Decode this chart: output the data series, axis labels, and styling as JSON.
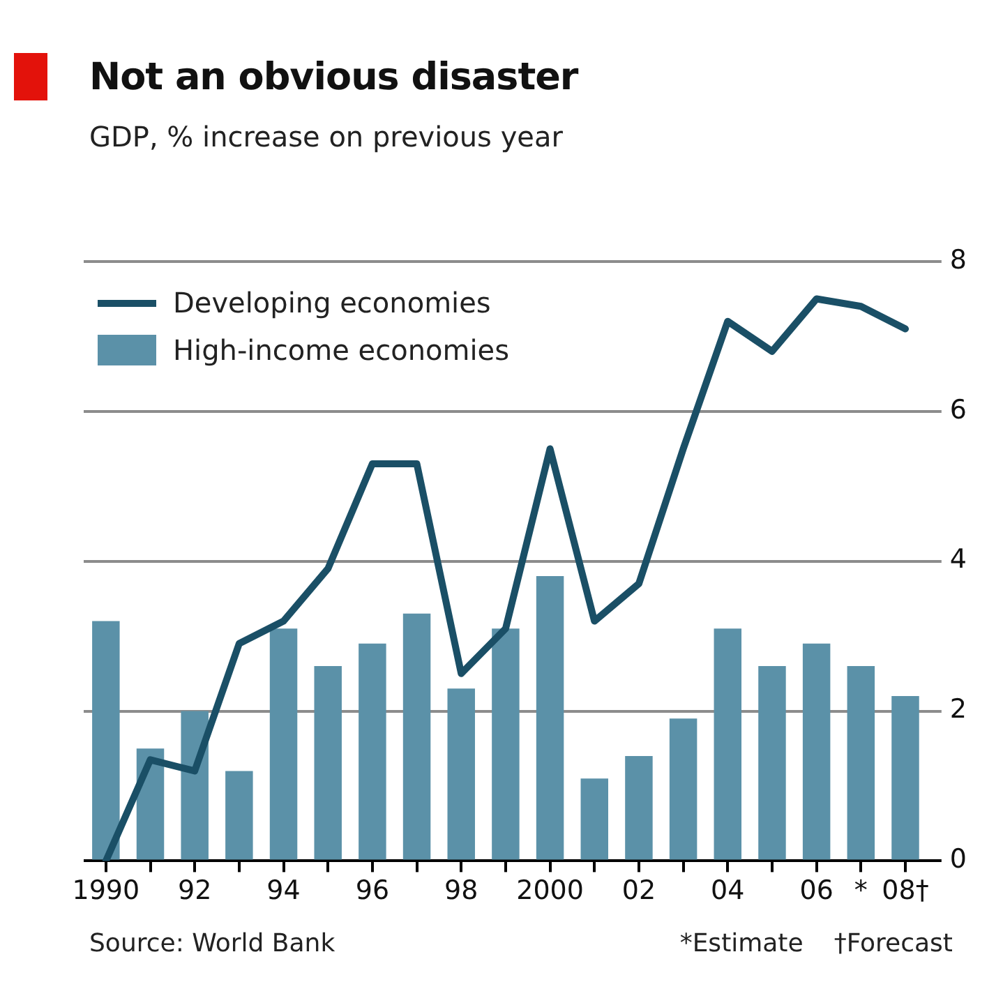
{
  "chart_data": {
    "type": "bar",
    "title": "Not an obvious disaster",
    "subtitle": "GDP, % increase on previous year",
    "categories": [
      "1990",
      null,
      "92",
      null,
      "94",
      null,
      "96",
      null,
      "98",
      null,
      "2000",
      null,
      "02",
      null,
      "04",
      null,
      "06",
      "*",
      "08†"
    ],
    "series": [
      {
        "name": "Developing economies",
        "type": "line",
        "color": "#1a4f66",
        "values": [
          0,
          1.35,
          1.2,
          2.9,
          3.2,
          3.9,
          5.3,
          5.3,
          2.5,
          3.1,
          5.5,
          3.2,
          3.7,
          5.5,
          7.2,
          6.8,
          7.5,
          7.4,
          7.1
        ]
      },
      {
        "name": "High-income economies",
        "color": "#5b91a8",
        "values": [
          3.2,
          1.5,
          2.0,
          1.2,
          3.1,
          2.6,
          2.9,
          3.3,
          2.3,
          3.1,
          3.8,
          1.1,
          1.4,
          1.9,
          3.1,
          2.6,
          2.9,
          2.6,
          2.2
        ]
      }
    ],
    "ylim": [
      0,
      8
    ],
    "yticks": [
      0,
      2,
      4,
      6,
      8
    ],
    "grid": "y",
    "legend": "top left",
    "marker": "none",
    "annotations": [
      "Source: World Bank",
      "*Estimate",
      "†Forecast"
    ]
  }
}
